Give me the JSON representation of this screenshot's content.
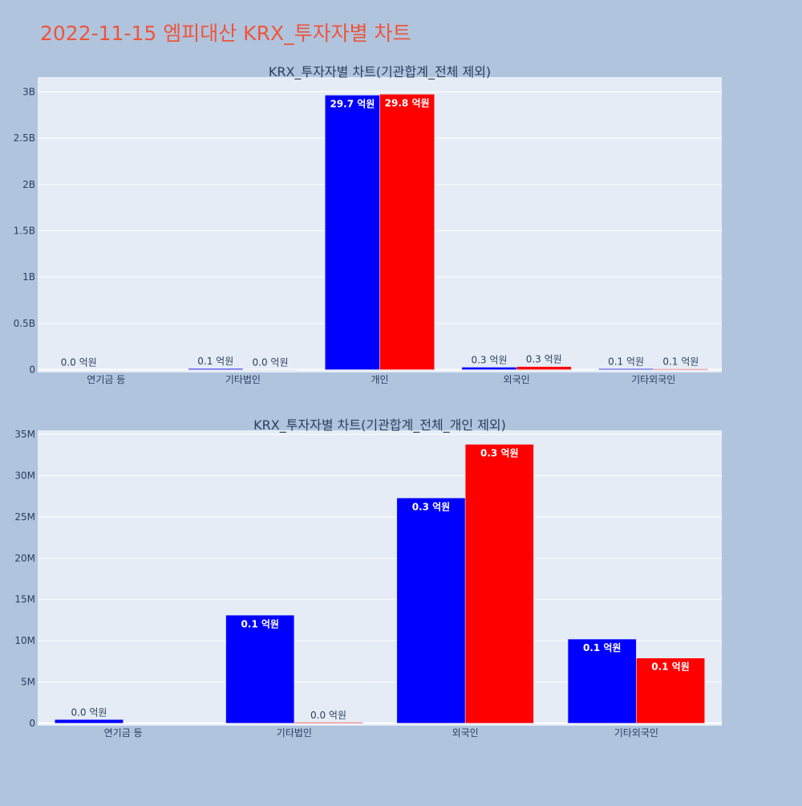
{
  "figure_title": "2022-11-15 엠피대산 KRX_투자자별 차트",
  "colors": {
    "background": "#b0c4de",
    "plot_background": "#e5ecf6",
    "gridline": "#ffffff",
    "title": "#ef553b",
    "text": "#2a3f5f",
    "series_a": "#0000ff",
    "series_b": "#ff0000"
  },
  "chart_data": [
    {
      "type": "bar",
      "barmode": "group",
      "title": "KRX_투자자별 차트(기관합계_전체 제외)",
      "categories": [
        "연기금 등",
        "기타법인",
        "개인",
        "외국인",
        "기타외국인"
      ],
      "series": [
        {
          "color": "#0000ff",
          "values": [
            0,
            12000000,
            2965000000,
            27000000,
            10000000
          ],
          "labels": [
            "0.0 억원",
            "0.1 억원",
            "29.7 억원",
            "0.3 억원",
            "0.1 억원"
          ]
        },
        {
          "color": "#ff0000",
          "values": [
            0,
            500000,
            2975000000,
            34000000,
            8000000
          ],
          "labels": [
            "",
            "0.0 억원",
            "29.8 억원",
            "0.3 억원",
            "0.1 억원"
          ]
        }
      ],
      "ylim": [
        -30000000,
        3160000000
      ],
      "yticks": [
        0,
        500000000,
        1000000000,
        1500000000,
        2000000000,
        2500000000,
        3000000000
      ],
      "yticklabels": [
        "0",
        "0.5B",
        "1B",
        "1.5B",
        "2B",
        "2.5B",
        "3B"
      ],
      "grid": true
    },
    {
      "type": "bar",
      "barmode": "group",
      "title": "KRX_투자자별 차트(기관합계_전체_개인 제외)",
      "categories": [
        "연기금 등",
        "기타법인",
        "외국인",
        "기타외국인"
      ],
      "series": [
        {
          "color": "#0000ff",
          "values": [
            450000,
            13100000,
            27300000,
            10200000
          ],
          "labels": [
            "0.0 억원",
            "0.1 억원",
            "0.3 억원",
            "0.1 억원"
          ]
        },
        {
          "color": "#ff0000",
          "values": [
            0,
            100000,
            33800000,
            7900000
          ],
          "labels": [
            "",
            "0.0 억원",
            "0.3 억원",
            "0.1 억원"
          ]
        }
      ],
      "ylim": [
        -300000,
        35500000
      ],
      "yticks": [
        0,
        5000000,
        10000000,
        15000000,
        20000000,
        25000000,
        30000000,
        35000000
      ],
      "yticklabels": [
        "0",
        "5M",
        "10M",
        "15M",
        "20M",
        "25M",
        "30M",
        "35M"
      ],
      "grid": true
    }
  ]
}
